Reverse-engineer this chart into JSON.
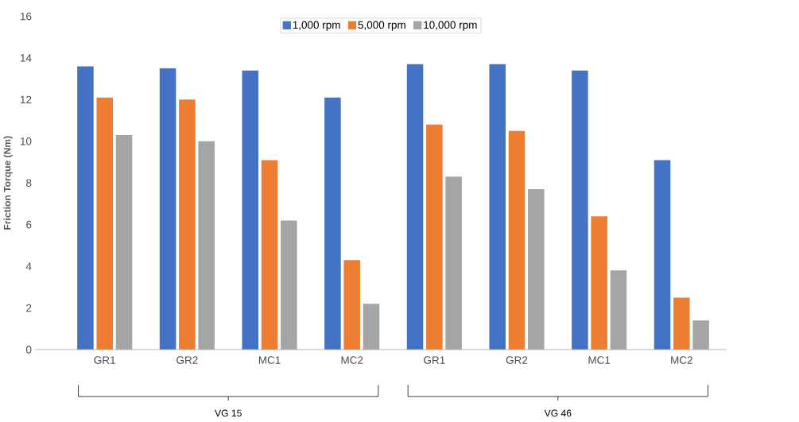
{
  "chart_data": {
    "type": "bar",
    "ylabel": "Friction Torque (Nm)",
    "categories": [
      "GR1",
      "GR2",
      "MC1",
      "MC2",
      "GR1",
      "GR2",
      "MC1",
      "MC2"
    ],
    "series": [
      {
        "name": "1,000 rpm",
        "color": "#4472c4",
        "values": [
          13.6,
          13.5,
          13.4,
          12.1,
          13.7,
          13.7,
          13.4,
          9.1
        ]
      },
      {
        "name": "5,000 rpm",
        "color": "#ed7d31",
        "values": [
          12.1,
          12.0,
          9.1,
          4.3,
          10.8,
          10.5,
          6.4,
          2.5
        ]
      },
      {
        "name": "10,000 rpm",
        "color": "#a5a5a5",
        "values": [
          10.3,
          10.0,
          6.2,
          2.2,
          8.3,
          7.7,
          3.8,
          1.4
        ]
      }
    ],
    "ylim": [
      0,
      16
    ],
    "yticks": [
      0,
      2,
      4,
      6,
      8,
      10,
      12,
      14,
      16
    ],
    "grid": false,
    "legend": "top",
    "annotations": [
      "VG 15",
      "VG 46"
    ]
  }
}
